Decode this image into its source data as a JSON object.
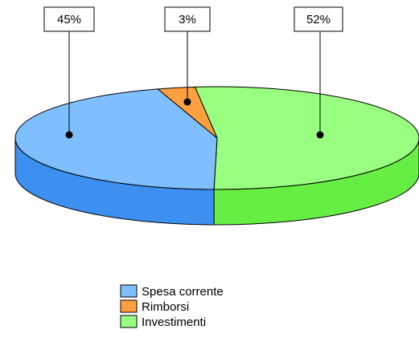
{
  "chart_data": {
    "type": "pie",
    "style": "3d",
    "slices": [
      {
        "name": "Spesa corrente",
        "value": 45,
        "label": "45%",
        "color": "#80bfff",
        "side_color": "#3d8ff0"
      },
      {
        "name": "Rimborsi",
        "value": 3,
        "label": "3%",
        "color": "#ffa040",
        "side_color": "#e07820"
      },
      {
        "name": "Investimenti",
        "value": 52,
        "label": "52%",
        "color": "#99ff80",
        "side_color": "#66ee44"
      }
    ],
    "legend_position": "bottom-center"
  }
}
